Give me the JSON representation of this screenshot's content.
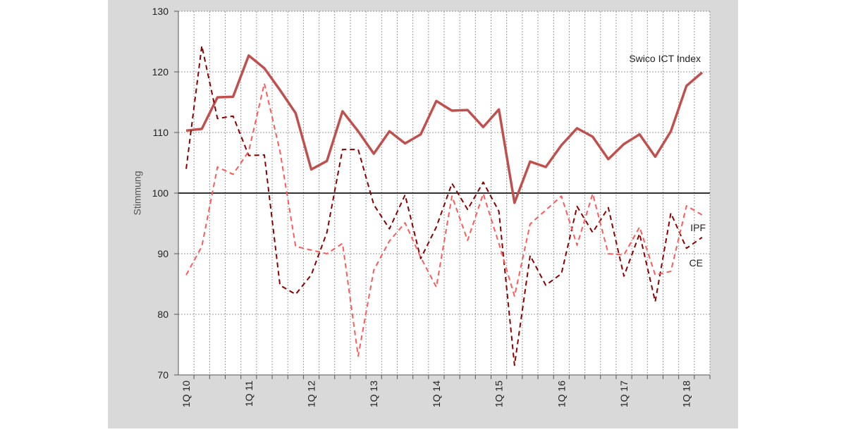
{
  "chart_data": {
    "type": "line",
    "y_label": "Stimmung",
    "categories": [
      "1Q 10",
      null,
      null,
      null,
      "1Q 11",
      null,
      null,
      null,
      "1Q 12",
      null,
      null,
      null,
      "1Q 13",
      null,
      null,
      null,
      "1Q 14",
      null,
      null,
      null,
      "1Q 15",
      null,
      null,
      null,
      "1Q 16",
      null,
      null,
      null,
      "1Q 17",
      null,
      null,
      null,
      "1Q 18",
      null
    ],
    "series": [
      {
        "name": "Swico ICT Index",
        "color": "#c0504d",
        "dashed": false,
        "values": [
          110.3,
          110.6,
          115.8,
          115.9,
          122.7,
          120.6,
          117,
          113.2,
          103.9,
          105.3,
          113.5,
          110.2,
          106.5,
          110.2,
          108.2,
          109.7,
          115.2,
          113.6,
          113.7,
          110.9,
          113.8,
          98.4,
          105.2,
          104.3,
          107.9,
          110.7,
          109.3,
          105.6,
          108.1,
          109.7,
          106,
          110.2,
          117.7,
          119.9
        ]
      },
      {
        "name": "IPF",
        "color": "#8b0000",
        "dashed": true,
        "values": [
          104,
          124.3,
          112.3,
          112.7,
          106.2,
          106.3,
          84.8,
          83.3,
          86.5,
          93.5,
          107.2,
          107.2,
          98.1,
          94.1,
          99.7,
          89.2,
          94.4,
          101.6,
          97.3,
          101.8,
          97,
          71.6,
          89.7,
          84.8,
          86.7,
          97.8,
          93.5,
          97.6,
          86.3,
          93.3,
          82.1,
          96.7,
          90.9,
          92.7
        ]
      },
      {
        "name": "CE",
        "color": "#ff5a5a",
        "dashed": true,
        "values": [
          86.5,
          91.2,
          104.3,
          103.1,
          106.9,
          118.1,
          106.9,
          91.2,
          90.6,
          90,
          91.7,
          73.1,
          87.3,
          92.1,
          95.1,
          89.4,
          84.5,
          99.5,
          92.2,
          99.9,
          91.7,
          83,
          94.9,
          97.2,
          99.5,
          91.4,
          99.9,
          90,
          89.8,
          94.4,
          86.5,
          87.1,
          97.9,
          96.4
        ]
      }
    ],
    "ylim": [
      70,
      130
    ],
    "yticks": [
      70,
      80,
      90,
      100,
      110,
      120,
      130
    ],
    "reference_line": 100,
    "grid": true
  }
}
